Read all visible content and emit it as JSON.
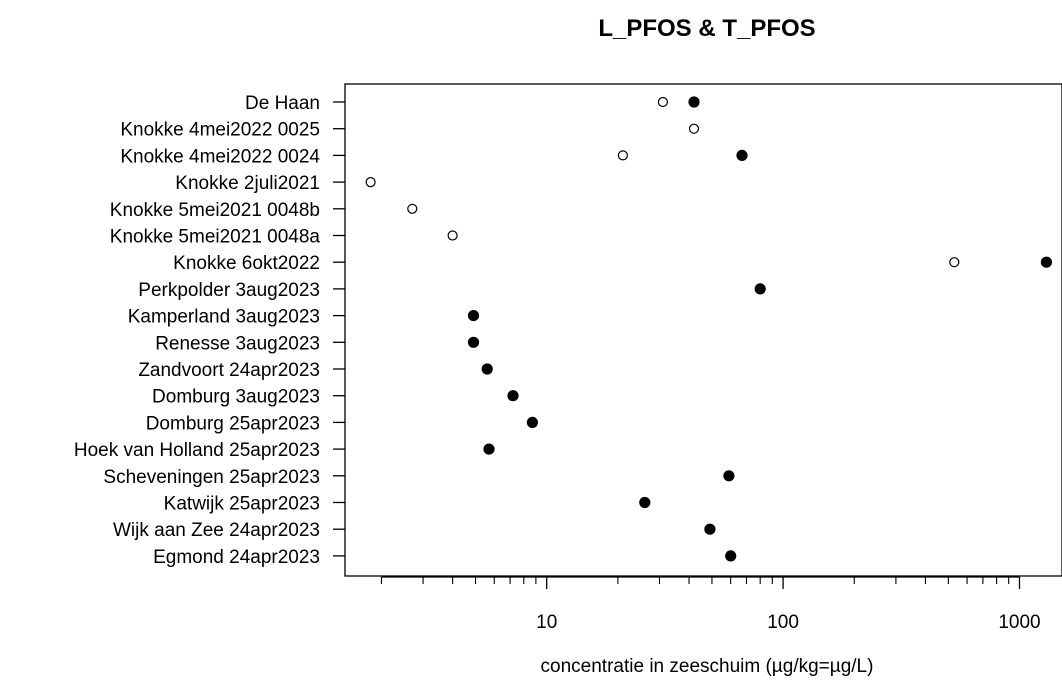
{
  "chart_data": {
    "type": "scatter",
    "title": "L_PFOS & T_PFOS",
    "xlabel": "concentratie in zeeschuim (µg/kg=µg/L)",
    "ylabel": "",
    "xscale": "log",
    "xlim": [
      1.4,
      1450
    ],
    "x_tick_labels": [
      "10",
      "100",
      "1000"
    ],
    "x_ticks": [
      10,
      100,
      1000
    ],
    "grid": false,
    "categories": [
      "De Haan",
      "Knokke 4mei2022 0025",
      "Knokke 4mei2022 0024",
      "Knokke 2juli2021",
      "Knokke 5mei2021 0048b",
      "Knokke 5mei2021 0048a",
      "Knokke 6okt2022",
      "Perkpolder 3aug2023",
      "Kamperland 3aug2023",
      "Renesse 3aug2023",
      "Zandvoort 24apr2023",
      "Domburg 3aug2023",
      "Domburg 25apr2023",
      "Hoek van Holland 25apr2023",
      "Scheveningen 25apr2023",
      "Katwijk 25apr2023",
      "Wijk aan Zee 24apr2023",
      "Egmond 24apr2023"
    ],
    "series": [
      {
        "marker": "open-circle",
        "color": "#000000",
        "values": [
          31,
          42,
          21,
          1.8,
          2.7,
          4.0,
          530,
          null,
          null,
          null,
          null,
          null,
          null,
          null,
          null,
          null,
          null,
          null
        ]
      },
      {
        "marker": "filled-circle",
        "color": "#000000",
        "values": [
          42,
          null,
          67,
          null,
          null,
          null,
          1300,
          80,
          4.9,
          4.9,
          5.6,
          7.2,
          8.7,
          5.7,
          59,
          26,
          49,
          60
        ]
      }
    ]
  }
}
